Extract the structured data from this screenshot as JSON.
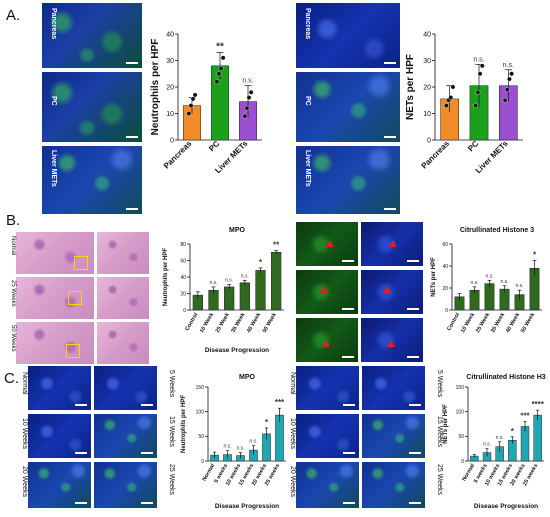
{
  "panels": {
    "A": "A.",
    "B": "B.",
    "C": "C."
  },
  "panelA": {
    "left_labels": [
      "Pancreas",
      "PC",
      "Liver METs"
    ],
    "right_labels": [
      "Pancreas",
      "PC",
      "Liver METs"
    ]
  },
  "panelB": {
    "he_labels": [
      "Normal",
      "25 Weeks",
      "50 Weeks"
    ]
  },
  "panelC": {
    "left_labels_left": [
      "Normal",
      "10 Weeks",
      "20 Weeks"
    ],
    "left_labels_right": [
      "5 Weeks",
      "15 Weeks",
      "25 Weeks"
    ],
    "right_labels_left": [
      "Normal",
      "10 Weeks",
      "20 Weeks"
    ],
    "right_labels_right": [
      "5 Weeks",
      "15 Weeks",
      "25 Weeks"
    ]
  },
  "colors": {
    "orange": "#f28c28",
    "green": "#1aa01a",
    "purple": "#9b4fd0",
    "darkgreen": "#2e6b1f",
    "teal": "#1fa7b5",
    "scalebar": "#ffffff",
    "arrow": "#e02020"
  },
  "chart_data": [
    {
      "id": "A1",
      "type": "bar",
      "title": "",
      "ylabel": "Neutrophils per HPF",
      "categories": [
        "Pancreas",
        "PC",
        "Liver METs"
      ],
      "values": [
        13,
        28,
        14.5
      ],
      "errors": [
        3,
        5,
        6
      ],
      "points": [
        [
          10,
          13,
          15.5,
          17
        ],
        [
          22,
          25,
          27,
          31
        ],
        [
          9,
          12,
          16,
          18
        ]
      ],
      "annotations": [
        "",
        "**",
        "n.s."
      ],
      "ylim": [
        0,
        40
      ],
      "yticks": [
        0,
        10,
        20,
        30,
        40
      ],
      "colors": [
        "#f28c28",
        "#1aa01a",
        "#9b4fd0"
      ]
    },
    {
      "id": "A2",
      "type": "bar",
      "title": "",
      "ylabel": "NETs per HPF",
      "categories": [
        "Pancreas",
        "PC",
        "Liver METs"
      ],
      "values": [
        15.5,
        20.5,
        20.5
      ],
      "errors": [
        5,
        8,
        6
      ],
      "points": [
        [
          13,
          15,
          16,
          20
        ],
        [
          13,
          18,
          25,
          28
        ],
        [
          15,
          19,
          23,
          25
        ]
      ],
      "annotations": [
        "",
        "n.s.",
        "n.s."
      ],
      "ylim": [
        0,
        40
      ],
      "yticks": [
        0,
        10,
        20,
        30,
        40
      ],
      "colors": [
        "#f28c28",
        "#1aa01a",
        "#9b4fd0"
      ]
    },
    {
      "id": "B1",
      "type": "bar",
      "title": "MPO",
      "ylabel": "Neutrophils per HPF",
      "xlabel": "Disease Progression",
      "categories": [
        "Control",
        "10 Week",
        "25 Week",
        "35 Week",
        "40 Week",
        "50 Week"
      ],
      "values": [
        18,
        24,
        28,
        33,
        48,
        70
      ],
      "errors": [
        4,
        4,
        3,
        3,
        3,
        2
      ],
      "annotations": [
        "",
        "n.s.",
        "n.s.",
        "n.s.",
        "*",
        "**"
      ],
      "ylim": [
        0,
        80
      ],
      "yticks": [
        0,
        20,
        40,
        60,
        80
      ],
      "color": "#2e6b1f"
    },
    {
      "id": "B2",
      "type": "bar",
      "title": "Citrullinated Histone 3",
      "ylabel": "NETs per HPF",
      "xlabel": "",
      "categories": [
        "Control",
        "10 Week",
        "25 Week",
        "35 Week",
        "40 Week",
        "50 Week"
      ],
      "values": [
        12,
        18,
        24,
        19,
        14,
        38
      ],
      "errors": [
        3,
        3,
        3,
        3,
        4,
        7
      ],
      "annotations": [
        "",
        "n.s.",
        "n.s.",
        "n.s.",
        "n.s.",
        "*"
      ],
      "ylim": [
        0,
        60
      ],
      "yticks": [
        0,
        20,
        40,
        60
      ],
      "color": "#2e6b1f"
    },
    {
      "id": "C1",
      "type": "bar",
      "title": "MPO",
      "ylabel": "Neutrophils per HPF",
      "xlabel": "Disease Progression",
      "categories": [
        "Normal",
        "5 weeks",
        "10 weeks",
        "15 weeks",
        "20 weeks",
        "25 weeks"
      ],
      "values": [
        12,
        13,
        11,
        22,
        55,
        93
      ],
      "errors": [
        6,
        8,
        6,
        9,
        12,
        14
      ],
      "annotations": [
        "",
        "n.s.",
        "n.s.",
        "n.s.",
        "*",
        "***"
      ],
      "ylim": [
        0,
        150
      ],
      "yticks": [
        0,
        50,
        100,
        150
      ],
      "color": "#1fa7b5"
    },
    {
      "id": "C2",
      "type": "bar",
      "title": "Citrullinated Histone H3",
      "ylabel": "NETs per HPF",
      "xlabel": "Disease Progression",
      "categories": [
        "Normal",
        "5 weeks",
        "10 weeks",
        "15 weeks",
        "20 weeks",
        "25 weeks"
      ],
      "values": [
        10,
        17,
        29,
        42,
        70,
        93
      ],
      "errors": [
        3,
        8,
        10,
        7,
        10,
        10
      ],
      "annotations": [
        "",
        "n.s.",
        "n.s.",
        "*",
        "***",
        "****"
      ],
      "ylim": [
        0,
        150
      ],
      "yticks": [
        0,
        50,
        100,
        150
      ],
      "color": "#1fa7b5"
    }
  ]
}
